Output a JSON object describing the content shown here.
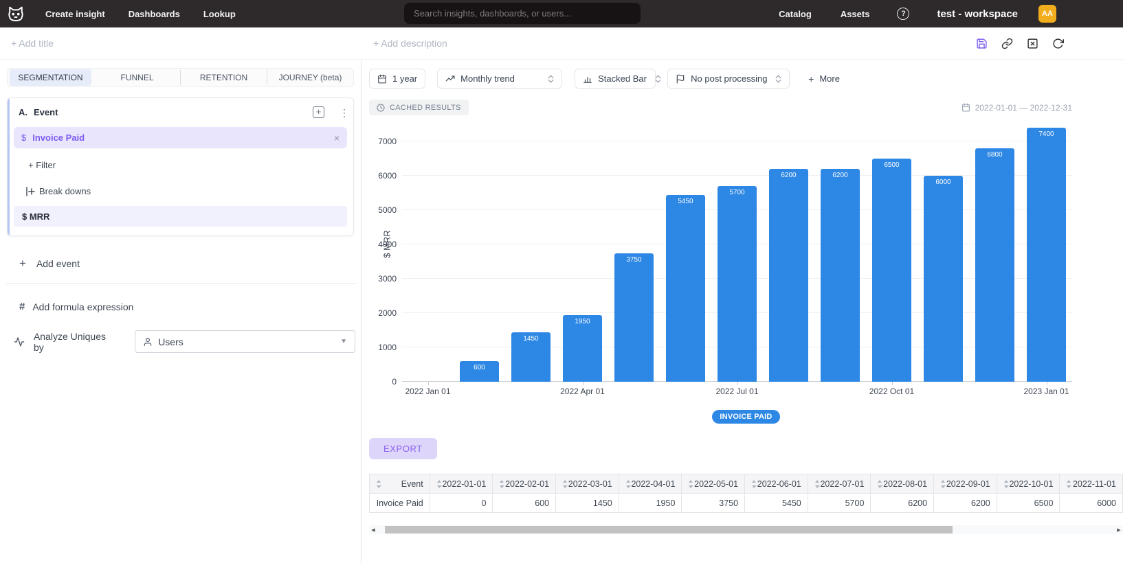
{
  "topnav": {
    "items": [
      {
        "label": "Create insight"
      },
      {
        "label": "Dashboards"
      },
      {
        "label": "Lookup"
      }
    ],
    "search_placeholder": "Search insights, dashboards, or users...",
    "right_items": [
      {
        "label": "Catalog"
      },
      {
        "label": "Assets"
      }
    ],
    "help": "?",
    "workspace": "test - workspace",
    "avatar_initials": "AA",
    "avatar_color": "#f2ad1d",
    "bg_color": "#2e292b"
  },
  "titlebar": {
    "add_title": "+ Add title",
    "add_description": "+ Add description",
    "actions": [
      "save",
      "copy-link",
      "close-box",
      "refresh"
    ]
  },
  "left_panel": {
    "tabs": [
      {
        "label": "SEGMENTATION",
        "active": true
      },
      {
        "label": "FUNNEL",
        "active": false
      },
      {
        "label": "RETENTION",
        "active": false
      },
      {
        "label": "JOURNEY (beta)",
        "active": false
      }
    ],
    "event_card": {
      "letter": "A.",
      "title": "Event",
      "event_symbol": "$",
      "event_name": "Invoice Paid",
      "close": "×",
      "filter_label": "+ Filter",
      "breakdowns_label": "Break downs",
      "breakdown_value": "$ MRR"
    },
    "add_event_label": "Add event",
    "add_event_plus": "+",
    "add_formula_hash": "#",
    "add_formula_label": "Add formula expression",
    "analyze_label": "Analyze Uniques by",
    "analyze_value": "Users"
  },
  "toolbar": {
    "date_button": "1 year",
    "trend_select": "Monthly trend",
    "chart_type_select": "Stacked Bar",
    "post_processing_select": "No post processing",
    "more_plus": "+",
    "more_label": "More"
  },
  "results": {
    "cached_badge": "CACHED RESULTS",
    "date_range": "2022-01-01 — 2022-12-31",
    "export_label": "EXPORT"
  },
  "chart_data": {
    "type": "bar",
    "title": "",
    "xlabel": "",
    "ylabel": "$ MRR",
    "series_name": "Invoice Paid",
    "x": [
      "2022-01-01",
      "2022-02-01",
      "2022-03-01",
      "2022-04-01",
      "2022-05-01",
      "2022-06-01",
      "2022-07-01",
      "2022-08-01",
      "2022-09-01",
      "2022-10-01",
      "2022-11-01",
      "2022-12-01",
      "2023-01-01"
    ],
    "values": [
      0,
      600,
      1450,
      1950,
      3750,
      5450,
      5700,
      6200,
      6200,
      6500,
      6000,
      6800,
      7400
    ],
    "bar_color": "#2d87e4",
    "yticks": [
      0,
      1000,
      2000,
      3000,
      4000,
      5000,
      6000,
      7000
    ],
    "ylim": [
      0,
      7600
    ],
    "grid": true,
    "x_axis_labels": [
      "2022 Jan 01",
      "2022 Apr 01",
      "2022 Jul 01",
      "2022 Oct 01",
      "2023 Jan 01"
    ],
    "x_label_slots": [
      0,
      3,
      6,
      9,
      12
    ],
    "legend": [
      "INVOICE PAID"
    ],
    "legend_position": "bottom"
  },
  "table": {
    "columns": [
      "Event",
      "2022-01-01",
      "2022-02-01",
      "2022-03-01",
      "2022-04-01",
      "2022-05-01",
      "2022-06-01",
      "2022-07-01",
      "2022-08-01",
      "2022-09-01",
      "2022-10-01",
      "2022-11-01"
    ],
    "rows": [
      [
        "Invoice Paid",
        "0",
        "600",
        "1450",
        "1950",
        "3750",
        "5450",
        "5700",
        "6200",
        "6200",
        "6500",
        "6000"
      ]
    ]
  }
}
